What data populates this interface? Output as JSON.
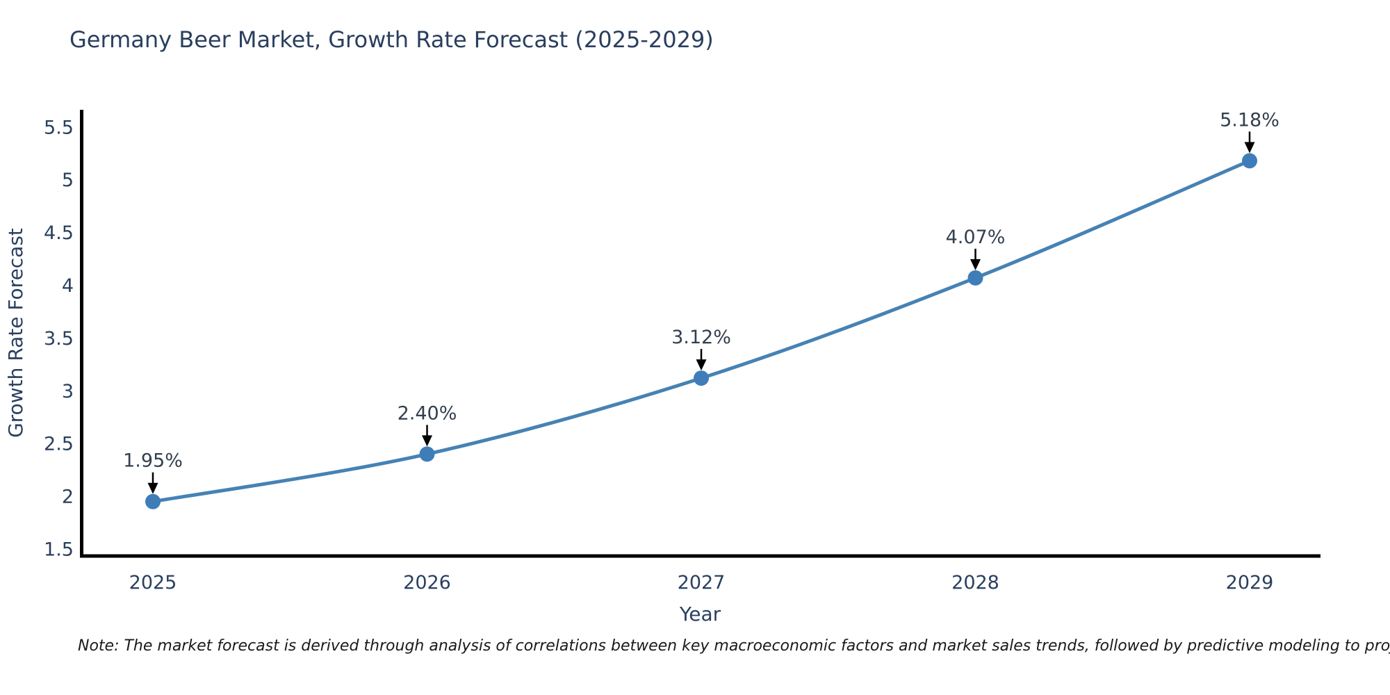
{
  "chart_data": {
    "type": "line",
    "title": "Germany Beer Market, Growth Rate Forecast (2025-2029)",
    "x": [
      2025,
      2026,
      2027,
      2028,
      2029
    ],
    "values": [
      1.95,
      2.4,
      3.12,
      4.07,
      5.18
    ],
    "point_labels": [
      "1.95%",
      "2.40%",
      "3.12%",
      "4.07%",
      "5.18%"
    ],
    "xlabel": "Year",
    "ylabel": "Growth Rate Forecast",
    "ytick_values": [
      1.5,
      2,
      2.5,
      3,
      3.5,
      4,
      4.5,
      5,
      5.5
    ],
    "ytick_labels": [
      "1.5",
      "2",
      "2.5",
      "3",
      "3.5",
      "4",
      "4.5",
      "5",
      "5.5"
    ],
    "ylim": [
      1.43,
      5.67
    ],
    "grid": false,
    "legend": "none",
    "line_color": "#4682b4",
    "marker_color": "#3f7db8",
    "axis_color": "#000000",
    "tick_text_color": "#2a3f5f",
    "annotation_text_color": "#333f4f",
    "annotation_arrow_color": "#000000"
  },
  "note": {
    "text": "Note: The market forecast is derived through analysis of correlations between key macroeconomic factors and market sales trends, followed by predictive modeling to project future sales"
  }
}
